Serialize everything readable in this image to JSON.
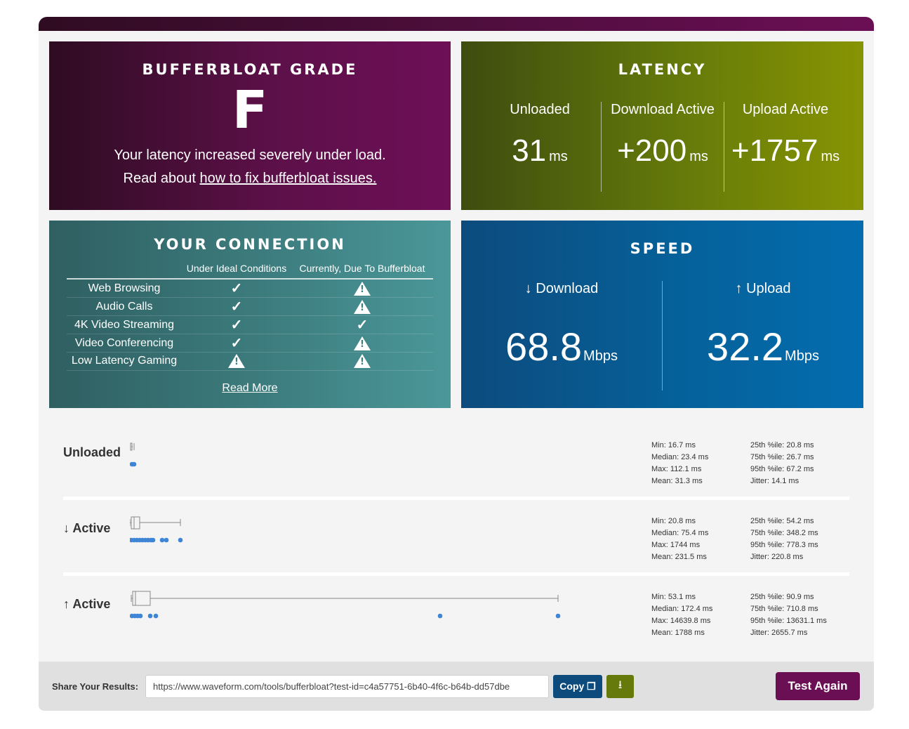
{
  "grade": {
    "title": "BUFFERBLOAT GRADE",
    "letter": "F",
    "message": "Your latency increased severely under load.",
    "read_prefix": "Read about ",
    "link_text": "how to fix bufferbloat issues."
  },
  "latency": {
    "title": "LATENCY",
    "columns": [
      {
        "label": "Unloaded",
        "value": "31",
        "unit": "ms"
      },
      {
        "label": "Download Active",
        "value": "+200",
        "unit": "ms"
      },
      {
        "label": "Upload Active",
        "value": "+1757",
        "unit": "ms"
      }
    ]
  },
  "connection": {
    "title": "YOUR CONNECTION",
    "col_ideal": "Under Ideal Conditions",
    "col_current": "Currently, Due To Bufferbloat",
    "rows": [
      {
        "name": "Web Browsing",
        "ideal": "check",
        "current": "warning"
      },
      {
        "name": "Audio Calls",
        "ideal": "check",
        "current": "warning"
      },
      {
        "name": "4K Video Streaming",
        "ideal": "check",
        "current": "check"
      },
      {
        "name": "Video Conferencing",
        "ideal": "check",
        "current": "warning"
      },
      {
        "name": "Low Latency Gaming",
        "ideal": "warning",
        "current": "warning"
      }
    ],
    "read_more": "Read More"
  },
  "speed": {
    "title": "SPEED",
    "download": {
      "label": "↓ Download",
      "value": "68.8",
      "unit": "Mbps"
    },
    "upload": {
      "label": "↑ Upload",
      "value": "32.2",
      "unit": "Mbps"
    }
  },
  "plots": [
    {
      "label": "Unloaded",
      "stats_a": [
        "Min: 16.7 ms",
        "Median: 23.4 ms",
        "Max: 112.1 ms",
        "Mean: 31.3 ms"
      ],
      "stats_b": [
        "25th %ile: 20.8 ms",
        "75th %ile: 26.7 ms",
        "95th %ile: 67.2 ms",
        "Jitter: 14.1 ms"
      ]
    },
    {
      "label": "↓ Active",
      "stats_a": [
        "Min: 20.8 ms",
        "Median: 75.4 ms",
        "Max: 1744 ms",
        "Mean: 231.5 ms"
      ],
      "stats_b": [
        "25th %ile: 54.2 ms",
        "75th %ile: 348.2 ms",
        "95th %ile: 778.3 ms",
        "Jitter: 220.8 ms"
      ]
    },
    {
      "label": "↑ Active",
      "stats_a": [
        "Min: 53.1 ms",
        "Median: 172.4 ms",
        "Max: 14639.8 ms",
        "Mean: 1788 ms"
      ],
      "stats_b": [
        "25th %ile: 90.9 ms",
        "75th %ile: 710.8 ms",
        "95th %ile: 13631.1 ms",
        "Jitter: 2655.7 ms"
      ]
    }
  ],
  "share": {
    "label": "Share Your Results:",
    "url": "https://www.waveform.com/tools/bufferbloat?test-id=c4a57751-6b40-4f6c-b64b-dd57dbe",
    "copy_label": "Copy",
    "download_icon": "download-icon",
    "test_again": "Test Again"
  },
  "colors": {
    "grade_accent": "#6b0f55",
    "latency_accent": "#879402",
    "connection_accent": "#4b9799",
    "speed_accent": "#046daf",
    "dot_color": "#3f85d6"
  }
}
